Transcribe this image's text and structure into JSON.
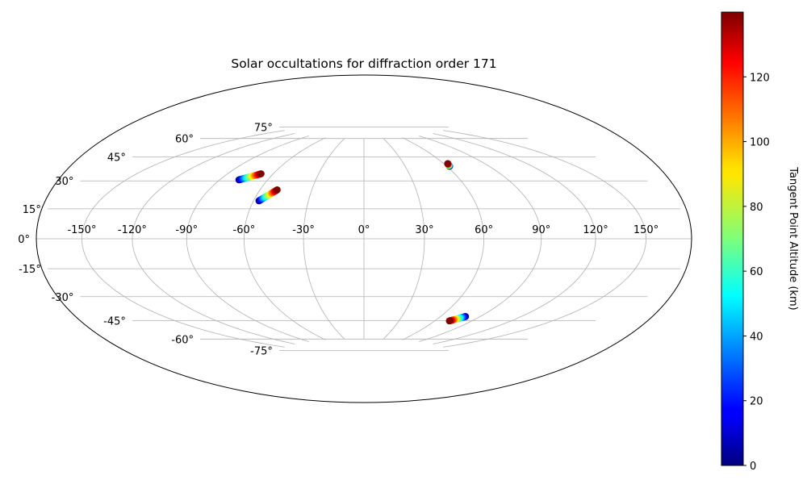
{
  "chart_data": {
    "type": "scatter",
    "projection": "hammer",
    "title": "Solar occultations for diffraction order 171",
    "grid": true,
    "lon_ticks": [
      -150,
      -120,
      -90,
      -60,
      -30,
      0,
      30,
      60,
      90,
      120,
      150
    ],
    "lat_ticks": [
      -75,
      -60,
      -45,
      -30,
      -15,
      0,
      15,
      30,
      45,
      60,
      75
    ],
    "lon_tick_labels": [
      "-150°",
      "-120°",
      "-90°",
      "-60°",
      "-30°",
      "0°",
      "30°",
      "60°",
      "90°",
      "120°",
      "150°"
    ],
    "lat_tick_labels": [
      "-75°",
      "-60°",
      "-45°",
      "-30°",
      "-15°",
      "0°",
      "15°",
      "30°",
      "45°",
      "60°",
      "75°"
    ],
    "colormap": "jet",
    "colorbar": {
      "label": "Tangent Point Altitude (km)",
      "range": [
        0,
        140
      ],
      "ticks": [
        0,
        20,
        40,
        60,
        80,
        100,
        120
      ],
      "tick_labels": [
        "0",
        "20",
        "40",
        "60",
        "80",
        "100",
        "120"
      ]
    },
    "series": [
      {
        "lon_start": -78,
        "lat_start": 40,
        "lon_end": -68,
        "lat_end": 45,
        "alt_start": 0,
        "alt_end": 140
      },
      {
        "lon_start": -57,
        "lat_start": 26,
        "lon_end": -50,
        "lat_end": 34,
        "alt_start": 0,
        "alt_end": 140
      },
      {
        "lon_start": 62,
        "lat_start": 51,
        "lon_end": 63,
        "lat_end": 53,
        "alt_start": 0,
        "alt_end": 140
      },
      {
        "lon_start": 79,
        "lat_start": -54,
        "lon_end": 72,
        "lat_end": -58,
        "alt_start": 0,
        "alt_end": 140
      }
    ]
  }
}
